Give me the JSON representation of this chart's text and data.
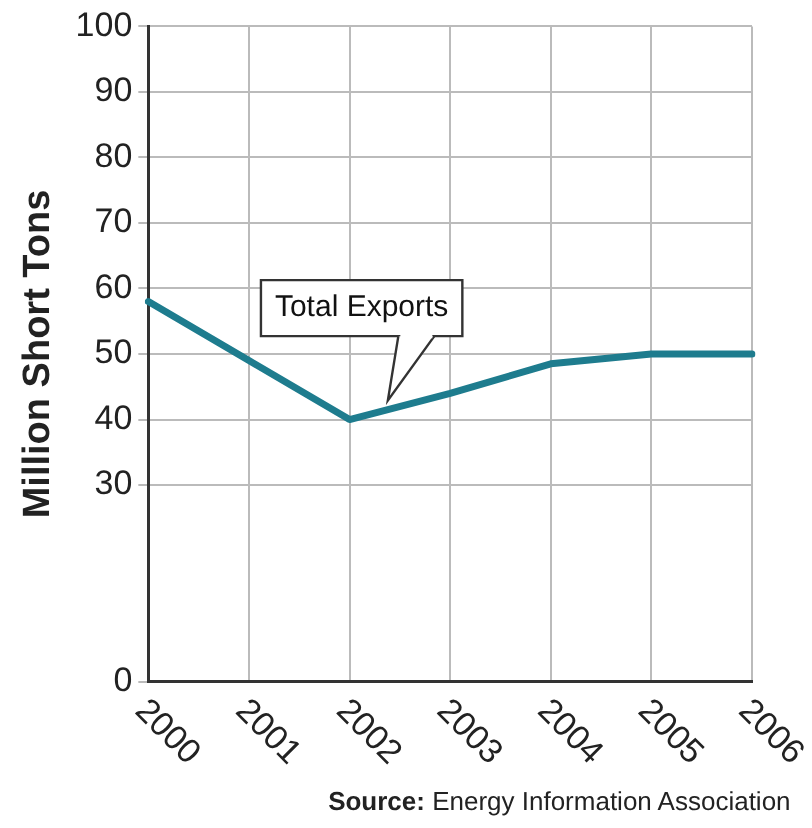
{
  "chart_data": {
    "type": "line",
    "ylabel": "Million Short Tons",
    "categories": [
      "2000",
      "2001",
      "2002",
      "2003",
      "2004",
      "2005",
      "2006"
    ],
    "series": [
      {
        "name": "Total Exports",
        "color": "#1e7c8e",
        "values": [
          58,
          49,
          40,
          44,
          48.5,
          50,
          50
        ]
      }
    ],
    "ylim": [
      0,
      100
    ],
    "yticks": [
      0,
      30,
      40,
      50,
      60,
      70,
      80,
      90,
      100
    ],
    "grid": true,
    "marker": "none",
    "line_style": "solid",
    "legend": false,
    "annotations": [
      "Source: Energy Information Association"
    ]
  }
}
